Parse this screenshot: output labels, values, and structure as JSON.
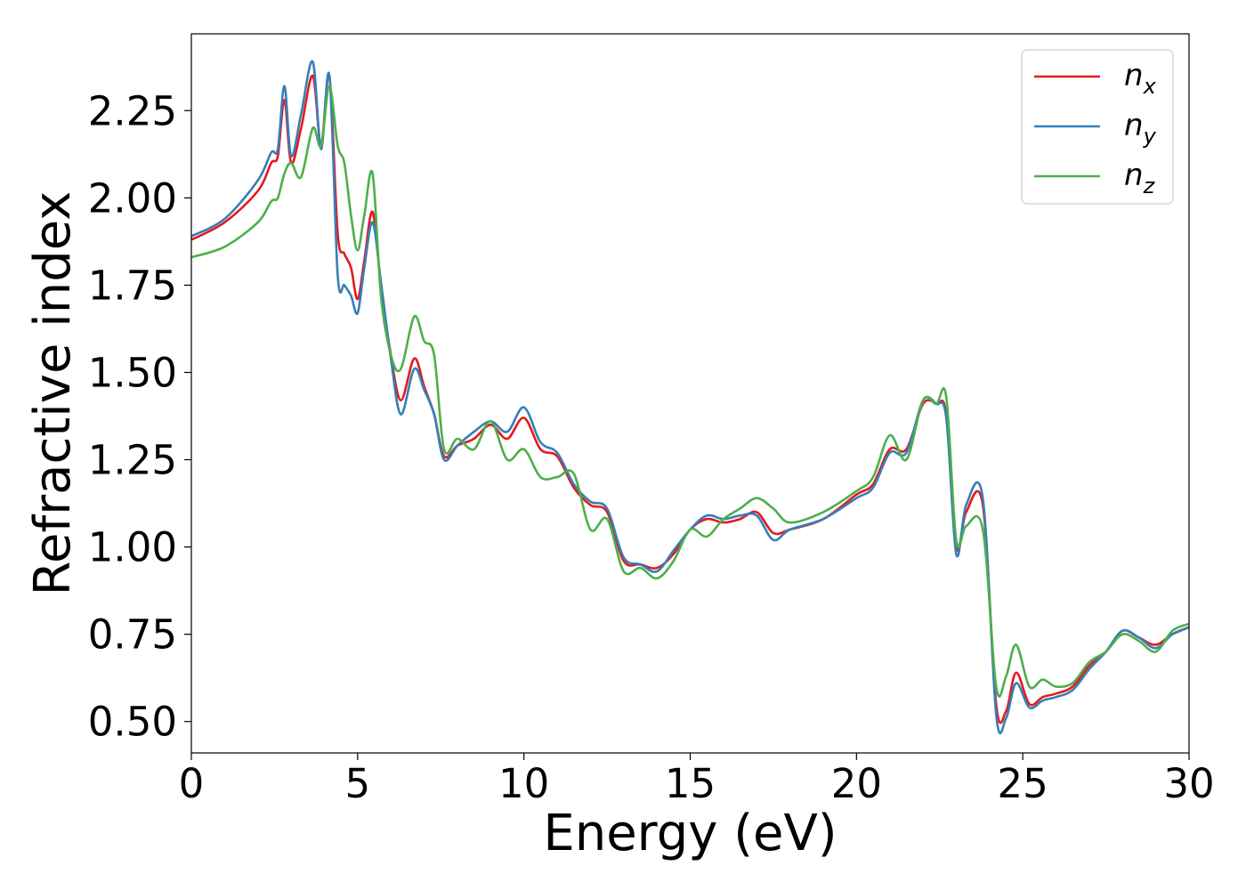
{
  "chart_data": {
    "type": "line",
    "xlabel": "Energy (eV)",
    "ylabel": "Refractive index",
    "xlim": [
      0,
      30
    ],
    "ylim": [
      0.41,
      2.47
    ],
    "xticks": [
      0,
      5,
      10,
      15,
      20,
      25,
      30
    ],
    "xtick_labels": [
      "0",
      "5",
      "10",
      "15",
      "20",
      "25",
      "30"
    ],
    "yticks": [
      0.5,
      0.75,
      1.0,
      1.25,
      1.5,
      1.75,
      2.0,
      2.25
    ],
    "ytick_labels": [
      "0.50",
      "0.75",
      "1.00",
      "1.25",
      "1.50",
      "1.75",
      "2.00",
      "2.25"
    ],
    "grid": false,
    "legend_position": "top-right",
    "series": [
      {
        "name": "n_x",
        "label_base": "n",
        "label_sub": "x",
        "color": "#e41a1c",
        "x": [
          0,
          1,
          2,
          2.4,
          2.6,
          2.8,
          3.0,
          3.3,
          3.65,
          3.9,
          4.15,
          4.4,
          4.6,
          4.8,
          5.0,
          5.2,
          5.45,
          5.7,
          6.0,
          6.3,
          6.7,
          7.0,
          7.3,
          7.6,
          8.0,
          8.5,
          9.0,
          9.5,
          10.0,
          10.5,
          11.0,
          11.5,
          12.0,
          12.5,
          13.0,
          13.5,
          14.0,
          14.5,
          15.0,
          15.5,
          16.0,
          16.5,
          17.0,
          17.5,
          18.0,
          19.0,
          20.0,
          20.5,
          21.0,
          21.5,
          22.0,
          22.4,
          22.7,
          23.0,
          23.3,
          23.8,
          24.2,
          24.5,
          24.8,
          25.2,
          25.6,
          26.0,
          26.5,
          27.0,
          27.5,
          28.0,
          28.5,
          29.0,
          29.5,
          30.0
        ],
        "y": [
          1.88,
          1.93,
          2.02,
          2.1,
          2.12,
          2.28,
          2.1,
          2.2,
          2.35,
          2.15,
          2.35,
          1.9,
          1.84,
          1.8,
          1.71,
          1.82,
          1.96,
          1.75,
          1.55,
          1.42,
          1.54,
          1.46,
          1.38,
          1.26,
          1.29,
          1.31,
          1.35,
          1.31,
          1.37,
          1.28,
          1.26,
          1.17,
          1.12,
          1.1,
          0.96,
          0.95,
          0.94,
          0.98,
          1.05,
          1.08,
          1.07,
          1.08,
          1.1,
          1.04,
          1.05,
          1.08,
          1.15,
          1.18,
          1.28,
          1.28,
          1.41,
          1.41,
          1.38,
          1.0,
          1.1,
          1.12,
          0.55,
          0.53,
          0.64,
          0.55,
          0.57,
          0.58,
          0.6,
          0.66,
          0.7,
          0.76,
          0.74,
          0.72,
          0.75,
          0.77
        ]
      },
      {
        "name": "n_y",
        "label_base": "n",
        "label_sub": "y",
        "color": "#377eb8",
        "x": [
          0,
          1,
          2,
          2.4,
          2.6,
          2.8,
          3.0,
          3.3,
          3.65,
          3.9,
          4.15,
          4.4,
          4.6,
          4.8,
          5.0,
          5.2,
          5.45,
          5.7,
          6.0,
          6.3,
          6.7,
          7.0,
          7.3,
          7.6,
          8.0,
          8.5,
          9.0,
          9.5,
          10.0,
          10.5,
          11.0,
          11.5,
          12.0,
          12.5,
          13.0,
          13.5,
          14.0,
          14.5,
          15.0,
          15.5,
          16.0,
          16.5,
          17.0,
          17.5,
          18.0,
          19.0,
          20.0,
          20.5,
          21.0,
          21.5,
          22.0,
          22.4,
          22.7,
          23.0,
          23.3,
          23.8,
          24.2,
          24.5,
          24.8,
          25.2,
          25.6,
          26.0,
          26.5,
          27.0,
          27.5,
          28.0,
          28.5,
          29.0,
          29.5,
          30.0
        ],
        "y": [
          1.89,
          1.94,
          2.05,
          2.13,
          2.14,
          2.32,
          2.12,
          2.24,
          2.39,
          2.14,
          2.35,
          1.78,
          1.75,
          1.72,
          1.67,
          1.8,
          1.93,
          1.76,
          1.54,
          1.38,
          1.51,
          1.45,
          1.38,
          1.25,
          1.29,
          1.33,
          1.36,
          1.33,
          1.4,
          1.3,
          1.27,
          1.18,
          1.13,
          1.11,
          0.97,
          0.95,
          0.93,
          0.99,
          1.05,
          1.09,
          1.08,
          1.09,
          1.09,
          1.02,
          1.05,
          1.08,
          1.14,
          1.17,
          1.27,
          1.27,
          1.42,
          1.41,
          1.37,
          0.98,
          1.12,
          1.14,
          0.52,
          0.51,
          0.61,
          0.54,
          0.56,
          0.57,
          0.59,
          0.65,
          0.7,
          0.76,
          0.74,
          0.71,
          0.75,
          0.77
        ]
      },
      {
        "name": "n_z",
        "label_base": "n",
        "label_sub": "z",
        "color": "#4daf4a",
        "x": [
          0,
          1,
          2,
          2.4,
          2.6,
          2.8,
          3.0,
          3.3,
          3.65,
          3.9,
          4.15,
          4.4,
          4.6,
          4.8,
          5.0,
          5.2,
          5.45,
          5.7,
          6.0,
          6.3,
          6.7,
          7.0,
          7.3,
          7.6,
          8.0,
          8.5,
          9.0,
          9.5,
          10.0,
          10.5,
          11.0,
          11.5,
          12.0,
          12.5,
          13.0,
          13.5,
          14.0,
          14.5,
          15.0,
          15.5,
          16.0,
          16.5,
          17.0,
          17.5,
          18.0,
          19.0,
          20.0,
          20.5,
          21.0,
          21.5,
          22.0,
          22.4,
          22.7,
          23.0,
          23.3,
          23.8,
          24.2,
          24.5,
          24.8,
          25.2,
          25.6,
          26.0,
          26.5,
          27.0,
          27.5,
          28.0,
          28.5,
          29.0,
          29.5,
          30.0
        ],
        "y": [
          1.83,
          1.86,
          1.93,
          1.99,
          2.0,
          2.07,
          2.1,
          2.06,
          2.2,
          2.15,
          2.32,
          2.15,
          2.1,
          1.95,
          1.85,
          1.95,
          2.07,
          1.72,
          1.55,
          1.51,
          1.66,
          1.59,
          1.55,
          1.28,
          1.31,
          1.28,
          1.36,
          1.25,
          1.28,
          1.2,
          1.2,
          1.21,
          1.05,
          1.08,
          0.93,
          0.94,
          0.91,
          0.96,
          1.05,
          1.03,
          1.08,
          1.11,
          1.14,
          1.11,
          1.07,
          1.1,
          1.16,
          1.2,
          1.32,
          1.25,
          1.42,
          1.41,
          1.43,
          1.02,
          1.06,
          1.05,
          0.6,
          0.63,
          0.72,
          0.6,
          0.62,
          0.6,
          0.61,
          0.67,
          0.7,
          0.75,
          0.73,
          0.7,
          0.76,
          0.78
        ]
      }
    ]
  }
}
